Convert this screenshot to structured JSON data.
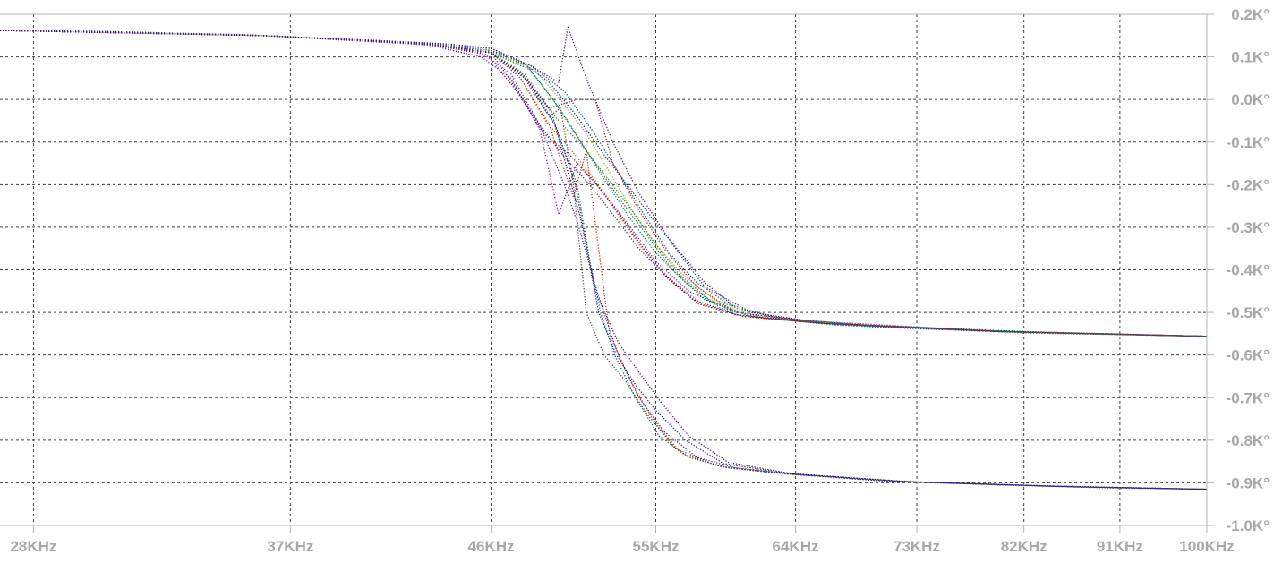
{
  "chart_data": {
    "type": "line",
    "title": "",
    "xlabel": "",
    "ylabel": "",
    "x_scale": "log",
    "xlim": [
      27000,
      100000
    ],
    "ylim": [
      -1.0,
      0.2
    ],
    "grid": true,
    "legend": "none",
    "x_tick_values": [
      28000,
      37000,
      46000,
      55000,
      64000,
      73000,
      82000,
      91000,
      100000
    ],
    "x_tick_labels": [
      "28KHz",
      "37KHz",
      "46KHz",
      "55KHz",
      "64KHz",
      "73KHz",
      "82KHz",
      "91KHz",
      "100KHz"
    ],
    "y_tick_values": [
      0.2,
      0.1,
      0.0,
      -0.1,
      -0.2,
      -0.3,
      -0.4,
      -0.5,
      -0.6,
      -0.7,
      -0.8,
      -0.9,
      -1.0
    ],
    "y_tick_labels": [
      "0.2K°",
      "0.1K°",
      "0.0K°",
      "-0.1K°",
      "-0.2K°",
      "-0.3K°",
      "-0.4K°",
      "-0.5K°",
      "-0.6K°",
      "-0.7K°",
      "-0.8K°",
      "-0.9K°",
      "-1.0K°"
    ],
    "colors": {
      "grid": "#404040",
      "tick_text": "#a8a8a8",
      "axis": "#b4b4b4",
      "series_palette": [
        "#1a237e",
        "#4a148c",
        "#7b1fa2",
        "#b71c1c",
        "#33691e",
        "#00838f",
        "#e65100",
        "#9e9d24",
        "#311b92",
        "#006064",
        "#2e7d32",
        "#880e4f",
        "#4527a0",
        "#00695c",
        "#bf360c",
        "#5d4037"
      ]
    },
    "series": [
      {
        "group": "upper",
        "x": [
          27000,
          30000,
          35000,
          40000,
          44000,
          46000,
          47500,
          49000,
          50500,
          52000,
          53500,
          55000,
          56500,
          58000,
          60000,
          64000,
          70000,
          80000,
          90000,
          100000
        ],
        "y": [
          0.162,
          0.16,
          0.152,
          0.14,
          0.13,
          0.12,
          0.09,
          0.04,
          -0.04,
          -0.13,
          -0.21,
          -0.29,
          -0.36,
          -0.43,
          -0.49,
          -0.52,
          -0.535,
          -0.545,
          -0.55,
          -0.556
        ]
      },
      {
        "group": "upper",
        "x": [
          27000,
          35000,
          42000,
          46000,
          48000,
          49500,
          50000,
          51000,
          52500,
          54000,
          56000,
          58000,
          61000,
          66000,
          75000,
          100000
        ],
        "y": [
          0.162,
          0.152,
          0.135,
          0.12,
          0.08,
          0.04,
          0.17,
          0.05,
          -0.1,
          -0.22,
          -0.34,
          -0.44,
          -0.5,
          -0.525,
          -0.54,
          -0.556
        ]
      },
      {
        "group": "upper",
        "x": [
          27000,
          36000,
          43000,
          45500,
          47000,
          48500,
          49500,
          50500,
          52000,
          53500,
          55000,
          57000,
          60000,
          65000,
          80000,
          100000
        ],
        "y": [
          0.162,
          0.15,
          0.128,
          0.1,
          0.05,
          -0.07,
          -0.27,
          -0.15,
          -0.22,
          -0.3,
          -0.38,
          -0.45,
          -0.5,
          -0.52,
          -0.545,
          -0.556
        ]
      },
      {
        "group": "upper",
        "x": [
          27000,
          36000,
          43000,
          46000,
          47500,
          49000,
          50500,
          51500,
          52500,
          54000,
          55500,
          57500,
          60000,
          66000,
          80000,
          100000
        ],
        "y": [
          0.162,
          0.15,
          0.13,
          0.11,
          0.06,
          -0.02,
          0.0,
          0.0,
          -0.15,
          -0.26,
          -0.35,
          -0.44,
          -0.5,
          -0.525,
          -0.545,
          -0.556
        ]
      },
      {
        "group": "upper",
        "x": [
          27000,
          36000,
          43000,
          46000,
          47800,
          49200,
          50700,
          52000,
          53000,
          54500,
          56000,
          58000,
          61000,
          67000,
          82000,
          100000
        ],
        "y": [
          0.162,
          0.15,
          0.13,
          0.115,
          0.08,
          0.0,
          -0.1,
          -0.18,
          -0.24,
          -0.32,
          -0.4,
          -0.47,
          -0.51,
          -0.53,
          -0.548,
          -0.556
        ]
      },
      {
        "group": "upper",
        "x": [
          27000,
          36000,
          43000,
          46000,
          48000,
          49700,
          51000,
          52200,
          53500,
          55000,
          56800,
          59000,
          62000,
          68000,
          84000,
          100000
        ],
        "y": [
          0.162,
          0.15,
          0.13,
          0.11,
          0.07,
          -0.03,
          -0.12,
          -0.2,
          -0.28,
          -0.36,
          -0.43,
          -0.49,
          -0.515,
          -0.53,
          -0.548,
          -0.556
        ]
      },
      {
        "group": "upper",
        "x": [
          27000,
          36000,
          43000,
          46000,
          47500,
          48800,
          50200,
          51500,
          52800,
          54200,
          55800,
          57800,
          60500,
          66000,
          80000,
          100000
        ],
        "y": [
          0.162,
          0.15,
          0.13,
          0.11,
          0.05,
          -0.05,
          -0.12,
          -0.19,
          -0.27,
          -0.35,
          -0.42,
          -0.48,
          -0.51,
          -0.525,
          -0.545,
          -0.556
        ]
      },
      {
        "group": "upper",
        "x": [
          27000,
          36000,
          43000,
          46000,
          48200,
          49600,
          51000,
          52300,
          53600,
          55000,
          56600,
          58600,
          61500,
          67500,
          82000,
          100000
        ],
        "y": [
          0.162,
          0.15,
          0.13,
          0.112,
          0.07,
          0.0,
          -0.08,
          -0.17,
          -0.26,
          -0.34,
          -0.41,
          -0.47,
          -0.51,
          -0.528,
          -0.546,
          -0.556
        ]
      },
      {
        "group": "upper",
        "x": [
          27000,
          36000,
          43000,
          46000,
          47200,
          48500,
          49900,
          51200,
          52500,
          54000,
          55500,
          57300,
          60000,
          65500,
          80000,
          100000
        ],
        "y": [
          0.162,
          0.15,
          0.13,
          0.11,
          0.03,
          -0.06,
          -0.14,
          -0.2,
          -0.27,
          -0.35,
          -0.41,
          -0.47,
          -0.505,
          -0.525,
          -0.545,
          -0.556
        ]
      },
      {
        "group": "upper",
        "x": [
          27000,
          36000,
          43000,
          46000,
          48000,
          49800,
          51300,
          52800,
          54300,
          55800,
          57500,
          59500,
          62500,
          69000,
          85000,
          100000
        ],
        "y": [
          0.162,
          0.15,
          0.13,
          0.115,
          0.08,
          0.02,
          -0.07,
          -0.17,
          -0.27,
          -0.36,
          -0.43,
          -0.48,
          -0.512,
          -0.53,
          -0.548,
          -0.556
        ]
      },
      {
        "group": "upper",
        "x": [
          27000,
          36000,
          43000,
          46000,
          47700,
          49300,
          50800,
          52100,
          53400,
          54800,
          56400,
          58300,
          61000,
          67000,
          81000,
          100000
        ],
        "y": [
          0.162,
          0.15,
          0.13,
          0.11,
          0.06,
          -0.04,
          -0.11,
          -0.18,
          -0.25,
          -0.33,
          -0.41,
          -0.47,
          -0.51,
          -0.527,
          -0.546,
          -0.556
        ]
      },
      {
        "group": "upper",
        "x": [
          27000,
          36000,
          43000,
          45800,
          47300,
          48700,
          50100,
          51400,
          52700,
          54100,
          55700,
          57600,
          60300,
          66000,
          80000,
          100000
        ],
        "y": [
          0.162,
          0.15,
          0.13,
          0.105,
          0.02,
          -0.08,
          -0.13,
          -0.19,
          -0.26,
          -0.34,
          -0.42,
          -0.48,
          -0.508,
          -0.525,
          -0.545,
          -0.556
        ]
      },
      {
        "group": "lower",
        "x": [
          27000,
          35000,
          42000,
          45500,
          47000,
          48500,
          49800,
          50600,
          51600,
          52800,
          54000,
          55500,
          57500,
          60000,
          64000,
          70000,
          80000,
          90000,
          100000
        ],
        "y": [
          0.162,
          0.152,
          0.135,
          0.11,
          0.06,
          -0.06,
          -0.2,
          -0.3,
          -0.45,
          -0.6,
          -0.7,
          -0.78,
          -0.84,
          -0.865,
          -0.88,
          -0.895,
          -0.905,
          -0.912,
          -0.915
        ]
      },
      {
        "group": "lower",
        "x": [
          27000,
          36000,
          43000,
          46000,
          47800,
          49200,
          50500,
          51200,
          51800,
          52600,
          53800,
          55200,
          57000,
          59500,
          63500,
          72000,
          85000,
          100000
        ],
        "y": [
          0.162,
          0.15,
          0.13,
          0.11,
          0.05,
          -0.05,
          -0.2,
          -0.38,
          -0.5,
          -0.6,
          -0.7,
          -0.79,
          -0.84,
          -0.865,
          -0.88,
          -0.898,
          -0.908,
          -0.915
        ]
      },
      {
        "group": "lower",
        "x": [
          27000,
          36000,
          43000,
          46000,
          47500,
          49000,
          50300,
          51000,
          51600,
          52300,
          53500,
          54800,
          56500,
          59000,
          63000,
          72000,
          85000,
          100000
        ],
        "y": [
          0.162,
          0.15,
          0.13,
          0.11,
          0.05,
          -0.06,
          -0.23,
          -0.12,
          -0.32,
          -0.55,
          -0.66,
          -0.75,
          -0.83,
          -0.862,
          -0.878,
          -0.897,
          -0.908,
          -0.915
        ]
      },
      {
        "group": "lower",
        "x": [
          27000,
          36000,
          43000,
          46000,
          47800,
          49000,
          49600,
          50300,
          51000,
          52000,
          53200,
          54500,
          56200,
          58800,
          63000,
          72000,
          85000,
          100000
        ],
        "y": [
          0.162,
          0.15,
          0.13,
          0.11,
          0.05,
          -0.04,
          -0.02,
          -0.2,
          -0.5,
          -0.6,
          -0.66,
          -0.74,
          -0.82,
          -0.86,
          -0.878,
          -0.897,
          -0.908,
          -0.915
        ]
      },
      {
        "group": "lower",
        "x": [
          27000,
          36000,
          43000,
          46000,
          47700,
          49300,
          50700,
          51700,
          52700,
          53800,
          55000,
          56800,
          59200,
          63500,
          72000,
          85000,
          100000
        ],
        "y": [
          0.162,
          0.15,
          0.13,
          0.11,
          0.05,
          -0.06,
          -0.28,
          -0.5,
          -0.6,
          -0.67,
          -0.73,
          -0.8,
          -0.855,
          -0.878,
          -0.897,
          -0.908,
          -0.915
        ]
      },
      {
        "group": "lower",
        "x": [
          27000,
          36000,
          43000,
          46000,
          47600,
          49100,
          50400,
          51500,
          52800,
          54000,
          55300,
          57000,
          59500,
          64000,
          73000,
          86000,
          100000
        ],
        "y": [
          0.162,
          0.15,
          0.13,
          0.11,
          0.06,
          -0.03,
          -0.2,
          -0.45,
          -0.57,
          -0.64,
          -0.71,
          -0.79,
          -0.852,
          -0.88,
          -0.898,
          -0.909,
          -0.915
        ]
      }
    ]
  }
}
